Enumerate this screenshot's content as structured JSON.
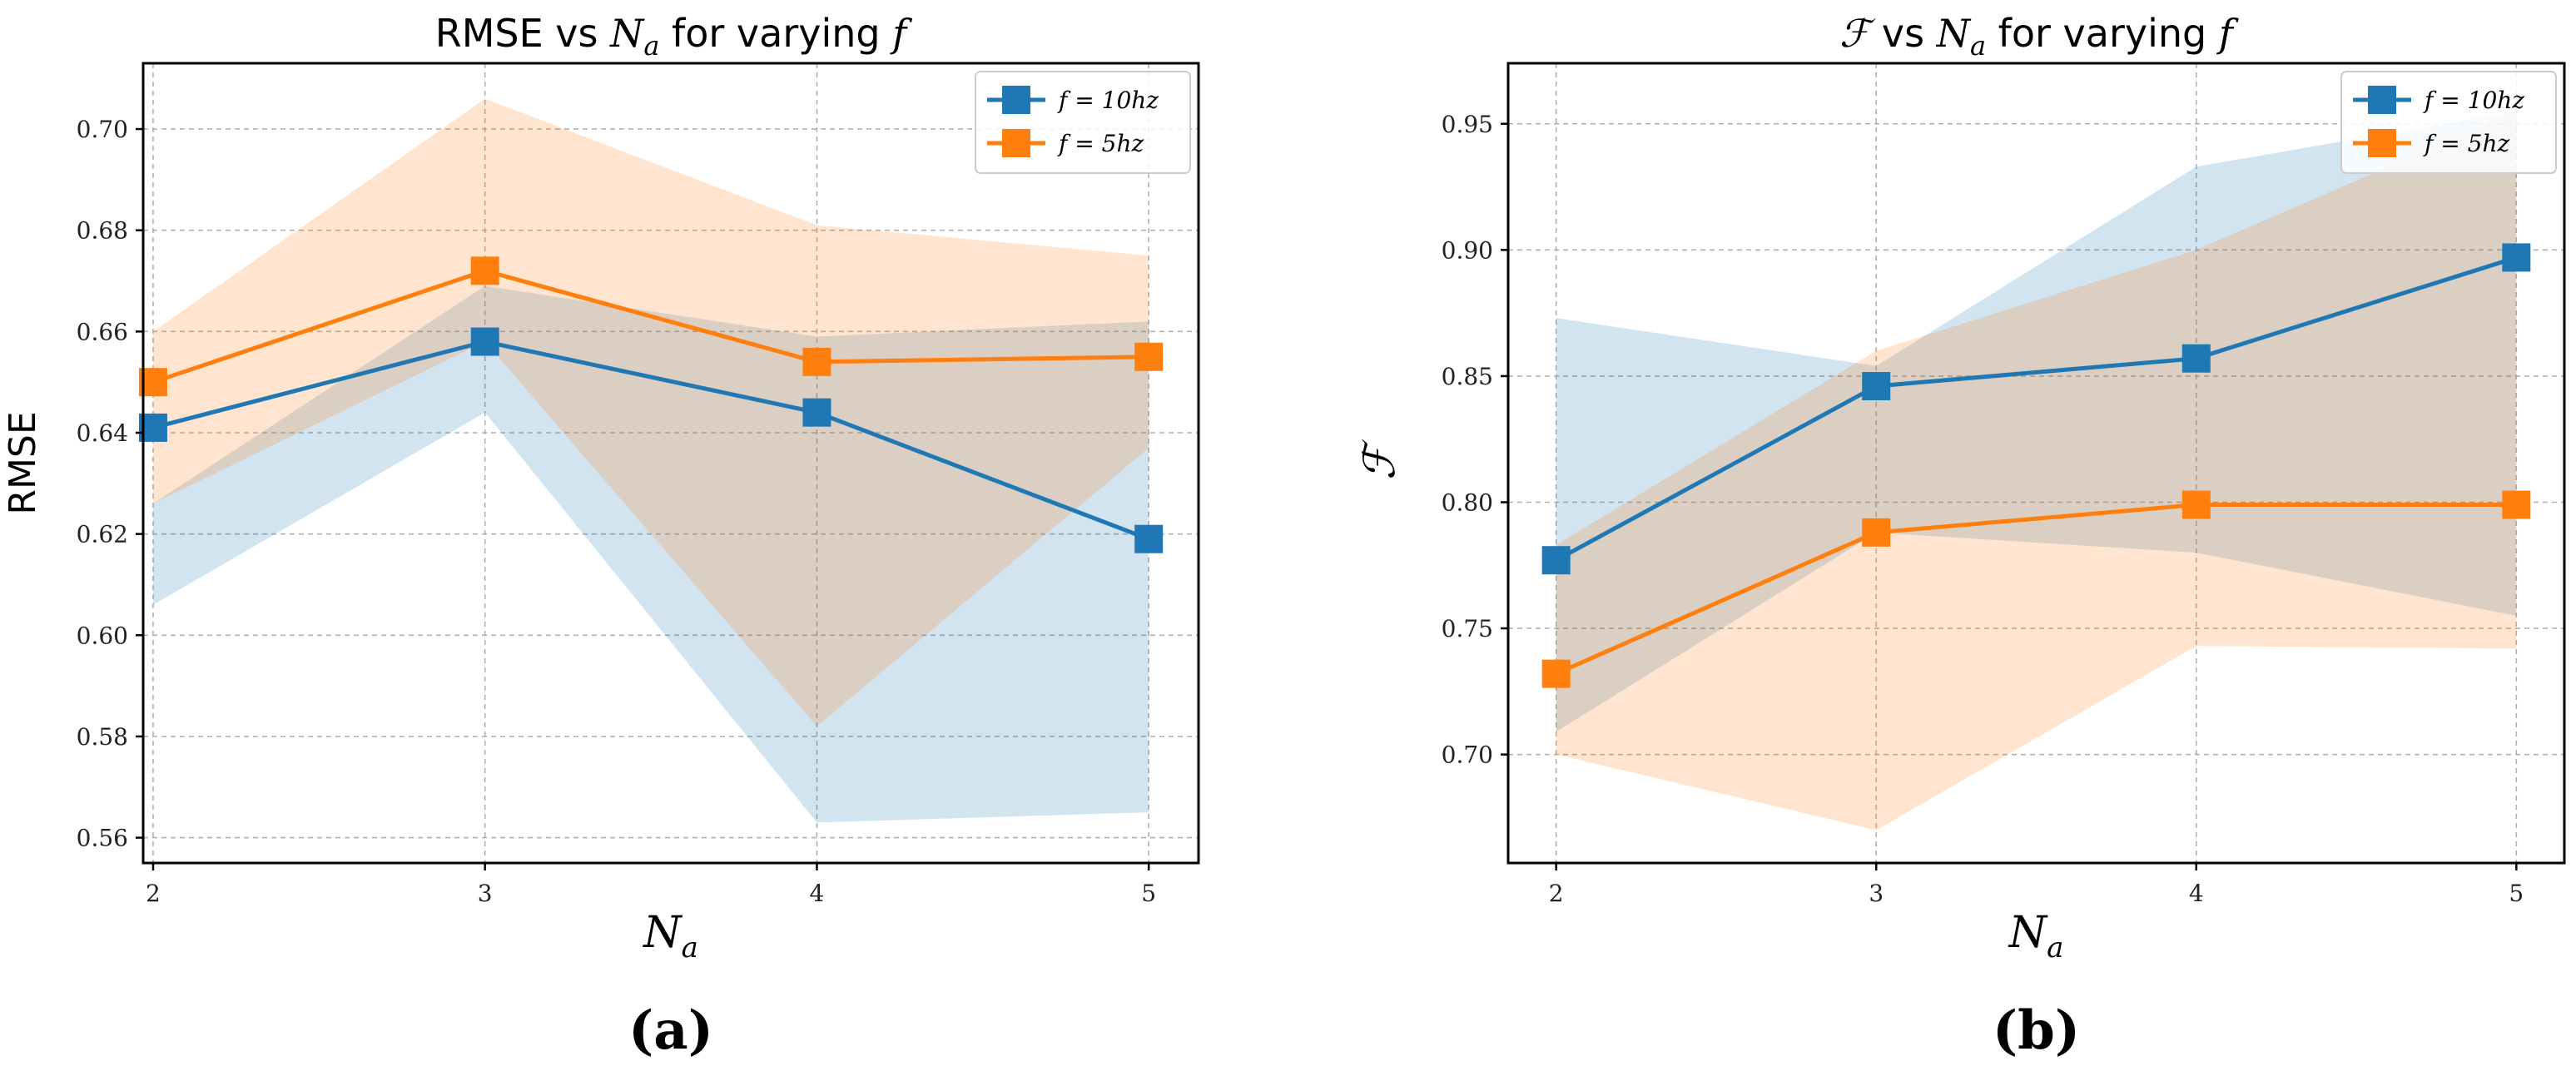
{
  "chart_data": [
    {
      "type": "line",
      "title": "RMSE vs Na for varying f",
      "title_parts": {
        "prefix": "RMSE vs ",
        "var": "N",
        "sub": "a",
        "suffix": " for varying ",
        "param": "f"
      },
      "xlabel": "Na",
      "xlabel_parts": {
        "var": "N",
        "sub": "a"
      },
      "ylabel": "RMSE",
      "x": [
        2,
        3,
        4,
        5
      ],
      "xlim": [
        1.97,
        5.15
      ],
      "ylim": [
        0.555,
        0.713
      ],
      "yticks": [
        0.56,
        0.58,
        0.6,
        0.62,
        0.64,
        0.66,
        0.68,
        0.7
      ],
      "ytick_labels": [
        "0.56",
        "0.58",
        "0.60",
        "0.62",
        "0.64",
        "0.66",
        "0.68",
        "0.70"
      ],
      "xtick_labels": [
        "2",
        "3",
        "4",
        "5"
      ],
      "legend_position": "top-right",
      "grid": true,
      "panel_label": "(a)",
      "series": [
        {
          "name": "f = 10hz",
          "legend_label": "f = 10hz",
          "color": "#1f77b4",
          "fill": "#1f77b4",
          "values": [
            0.641,
            0.658,
            0.644,
            0.619
          ],
          "lower": [
            0.606,
            0.644,
            0.563,
            0.565
          ],
          "upper": [
            0.626,
            0.669,
            0.659,
            0.662
          ]
        },
        {
          "name": "f = 5hz",
          "legend_label": "f = 5hz",
          "color": "#ff7f0e",
          "fill": "#ff7f0e",
          "values": [
            0.65,
            0.672,
            0.654,
            0.655
          ],
          "lower": [
            0.626,
            0.658,
            0.582,
            0.637
          ],
          "upper": [
            0.66,
            0.706,
            0.681,
            0.675
          ]
        }
      ]
    },
    {
      "type": "line",
      "title": "F vs Na for varying f",
      "title_parts": {
        "prefix": "",
        "var": "ℱ",
        "suffix_vs": " vs ",
        "var2": "N",
        "sub": "a",
        "suffix": " for varying ",
        "param": "f"
      },
      "xlabel": "Na",
      "xlabel_parts": {
        "var": "N",
        "sub": "a"
      },
      "ylabel": "ℱ",
      "x": [
        2,
        3,
        4,
        5
      ],
      "xlim": [
        1.85,
        5.15
      ],
      "ylim": [
        0.657,
        0.974
      ],
      "yticks": [
        0.7,
        0.75,
        0.8,
        0.85,
        0.9,
        0.95
      ],
      "ytick_labels": [
        "0.70",
        "0.75",
        "0.80",
        "0.85",
        "0.90",
        "0.95"
      ],
      "xtick_labels": [
        "2",
        "3",
        "4",
        "5"
      ],
      "legend_position": "top-right",
      "grid": true,
      "panel_label": "(b)",
      "series": [
        {
          "name": "f = 10hz",
          "legend_label": "f = 10hz",
          "color": "#1f77b4",
          "fill": "#1f77b4",
          "values": [
            0.777,
            0.846,
            0.857,
            0.897
          ],
          "lower": [
            0.709,
            0.788,
            0.78,
            0.755
          ],
          "upper": [
            0.873,
            0.854,
            0.933,
            0.955
          ]
        },
        {
          "name": "f = 5hz",
          "legend_label": "f = 5hz",
          "color": "#ff7f0e",
          "fill": "#ff7f0e",
          "values": [
            0.732,
            0.788,
            0.799,
            0.799
          ],
          "lower": [
            0.7,
            0.67,
            0.743,
            0.742
          ],
          "upper": [
            0.783,
            0.86,
            0.9,
            0.955
          ]
        }
      ]
    }
  ]
}
